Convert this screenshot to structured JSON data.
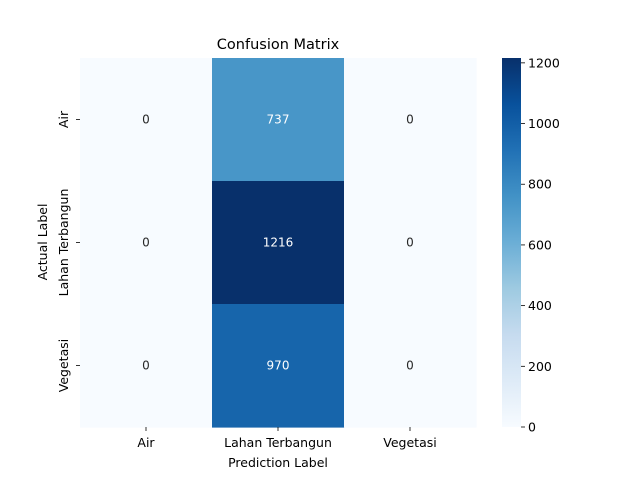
{
  "chart_data": {
    "type": "heatmap",
    "title": "Confusion Matrix",
    "xlabel": "Prediction Label",
    "ylabel": "Actual Label",
    "x_categories": [
      "Air",
      "Lahan Terbangun",
      "Vegetasi"
    ],
    "y_categories": [
      "Air",
      "Lahan Terbangun",
      "Vegetasi"
    ],
    "values": [
      [
        0,
        737,
        0
      ],
      [
        0,
        1216,
        0
      ],
      [
        0,
        970,
        0
      ]
    ],
    "colormap": "Blues",
    "colorbar": {
      "range": [
        0,
        1216
      ],
      "ticks": [
        0,
        200,
        400,
        600,
        800,
        1000,
        1200
      ]
    },
    "annotations": true
  }
}
